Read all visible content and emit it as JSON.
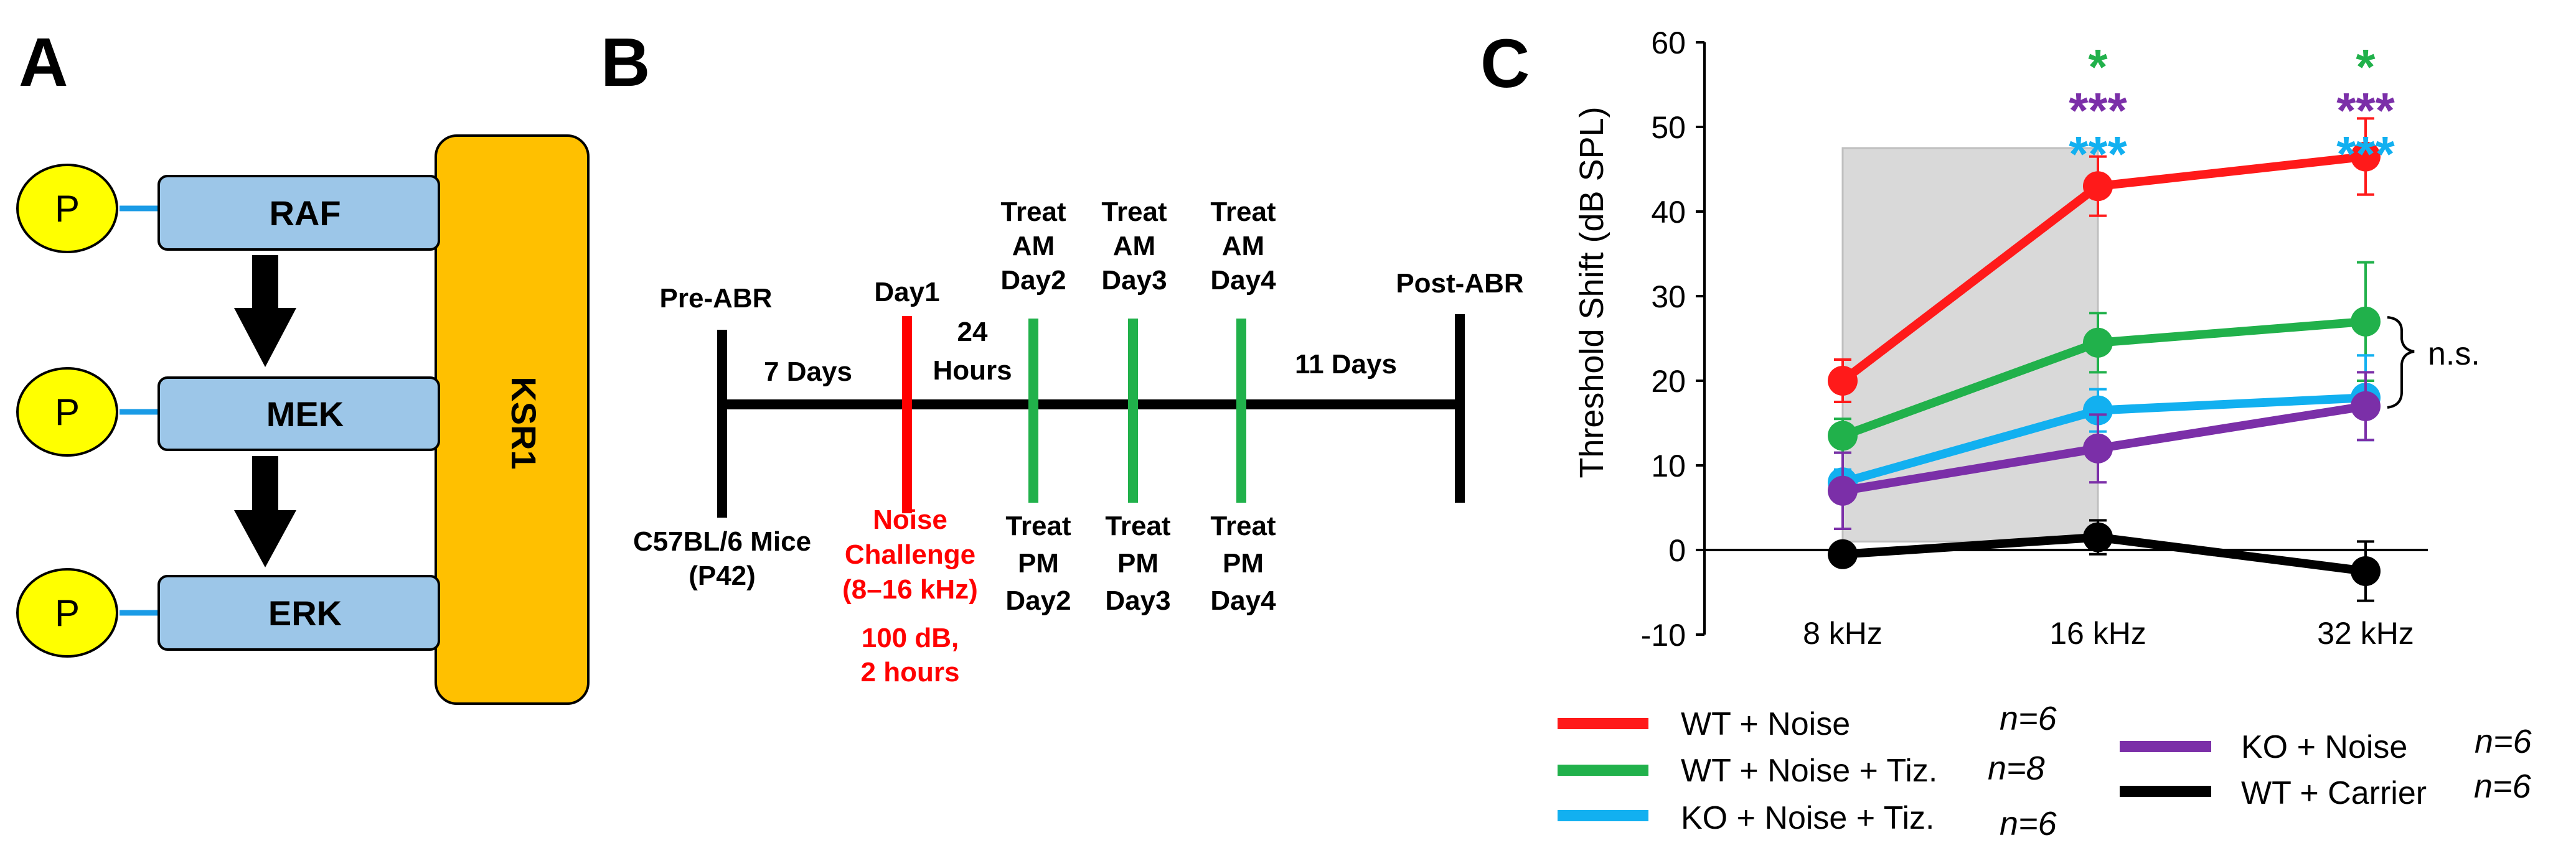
{
  "panels": {
    "a": "A",
    "b": "B",
    "c": "C"
  },
  "pathway": {
    "phospho": "P",
    "kinases": [
      "RAF",
      "MEK",
      "ERK"
    ],
    "scaffold": "KSR1",
    "colors": {
      "kinase": "#9cc6e8",
      "scaffold": "#ffc000",
      "phospho": "#ffff00",
      "link": "#1a9be6"
    }
  },
  "timeline": {
    "pre_abr": "Pre-ABR",
    "mice": [
      "C57BL/6 Mice",
      "(P42)"
    ],
    "seven_days": "7 Days",
    "day1": "Day1",
    "hours": [
      "24",
      "Hours"
    ],
    "noise": [
      "Noise",
      "Challenge",
      "(8–16 kHz)",
      "100 dB,",
      "2 hours"
    ],
    "am": [
      [
        "Treat",
        "AM",
        "Day2"
      ],
      [
        "Treat",
        "AM",
        "Day3"
      ],
      [
        "Treat",
        "AM",
        "Day4"
      ]
    ],
    "pm": [
      [
        "Treat",
        "PM",
        "Day2"
      ],
      [
        "Treat",
        "PM",
        "Day3"
      ],
      [
        "Treat",
        "PM",
        "Day4"
      ]
    ],
    "eleven_days": "11 Days",
    "post_abr": "Post-ABR",
    "colors": {
      "noise": "#ff0000",
      "treat": "#21b14b"
    }
  },
  "chart_data": {
    "type": "line",
    "ylabel": "Threshold Shift (dB SPL)",
    "categories": [
      "8 kHz",
      "16 kHz",
      "32 kHz"
    ],
    "ylim": [
      -10,
      60
    ],
    "yticks": [
      -10,
      0,
      10,
      20,
      30,
      40,
      50,
      60
    ],
    "shaded_region": {
      "x_from": "8 kHz",
      "x_to": "16 kHz",
      "y_from": 1,
      "y_to": 47.5
    },
    "series": [
      {
        "name": "WT + Noise",
        "n": "n=6",
        "color": "#ff1a1a",
        "values": [
          20,
          43,
          46.5
        ],
        "err": [
          2.5,
          3.5,
          4.5
        ]
      },
      {
        "name": "WT + Noise + Tiz.",
        "n": "n=8",
        "color": "#21b14b",
        "values": [
          13.5,
          24.5,
          27
        ],
        "err": [
          2,
          3.5,
          7
        ]
      },
      {
        "name": "KO + Noise + Tiz.",
        "n": "n=6",
        "color": "#12b0f0",
        "values": [
          8,
          16.5,
          18
        ],
        "err": [
          1.5,
          2.5,
          5
        ]
      },
      {
        "name": "KO + Noise",
        "n": "n=6",
        "color": "#7b2fa8",
        "values": [
          7,
          12,
          17
        ],
        "err": [
          4.5,
          4,
          4
        ]
      },
      {
        "name": "WT + Carrier",
        "n": "n=6",
        "color": "#000000",
        "values": [
          -0.5,
          1.5,
          -2.5
        ],
        "err": [
          0.5,
          2,
          3.5
        ]
      }
    ],
    "significance": [
      {
        "category": "16 kHz",
        "marks": [
          {
            "text": "*",
            "color": "#21b14b"
          },
          {
            "text": "***",
            "color": "#7b2fa8"
          },
          {
            "text": "***",
            "color": "#12b0f0"
          }
        ]
      },
      {
        "category": "32 kHz",
        "marks": [
          {
            "text": "*",
            "color": "#21b14b"
          },
          {
            "text": "***",
            "color": "#7b2fa8"
          },
          {
            "text": "***",
            "color": "#12b0f0"
          }
        ]
      }
    ],
    "ns_label": "n.s."
  }
}
